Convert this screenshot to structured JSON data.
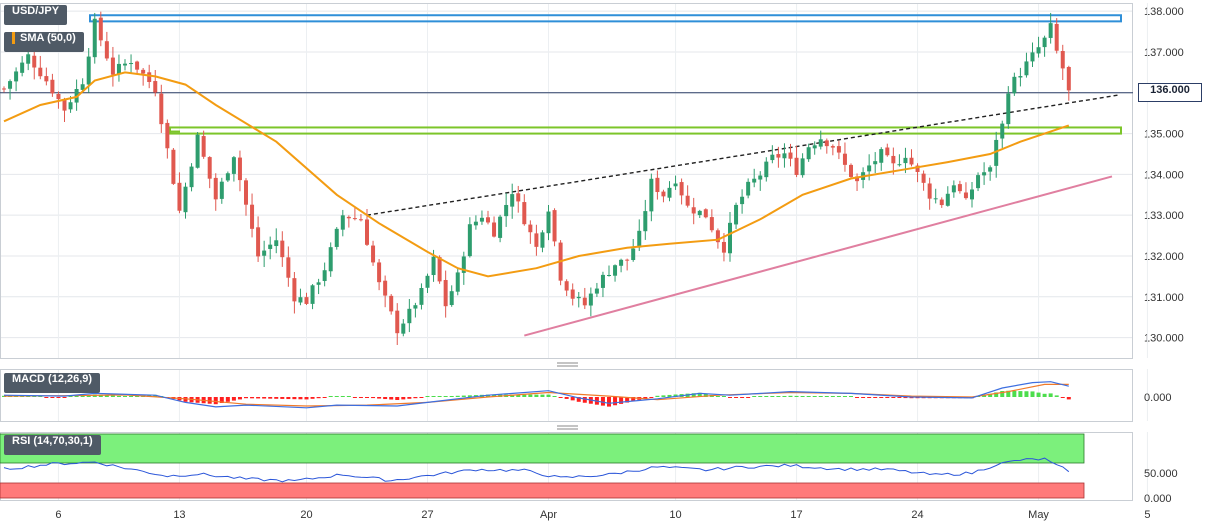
{
  "symbol": "USD/JPY",
  "sma_label": "SMA (50,0)",
  "macd_label": "MACD (12,26,9)",
  "rsi_label": "RSI (14,70,30,1)",
  "current_price": "136.000",
  "colors": {
    "bull": "#2e9d6e",
    "bear": "#e0584f",
    "sma": "#f39c12",
    "support": "#e07fa0",
    "resistance_box": "#2f8fd8",
    "green_box": "#7cc52a",
    "macd_line": "#3d6fe0",
    "signal_line": "#f07a2a",
    "rsi_line": "#2b56d9",
    "overbought": "#7cf07c",
    "oversold": "#ff7a7a"
  },
  "chart_data": {
    "type": "candlestick",
    "x_ticks": [
      "6",
      "13",
      "20",
      "27",
      "Apr",
      "10",
      "17",
      "24",
      "May",
      "5"
    ],
    "y_ticks": [
      "138.000",
      "137.000",
      "136.000",
      "135.000",
      "134.000",
      "133.000",
      "132.000",
      "131.000",
      "130.000"
    ],
    "ylim": [
      129.5,
      138.2
    ],
    "close_path": [
      [
        0,
        136.1
      ],
      [
        4,
        136.9
      ],
      [
        7,
        136.3
      ],
      [
        10,
        135.6
      ],
      [
        13,
        136.3
      ],
      [
        15,
        137.7
      ],
      [
        18,
        136.5
      ],
      [
        21,
        136.8
      ],
      [
        25,
        136.1
      ],
      [
        27,
        134.6
      ],
      [
        29,
        133.1
      ],
      [
        32,
        134.9
      ],
      [
        35,
        133.4
      ],
      [
        38,
        134.5
      ],
      [
        42,
        132.0
      ],
      [
        45,
        132.4
      ],
      [
        48,
        131.0
      ],
      [
        50,
        130.9
      ],
      [
        53,
        131.7
      ],
      [
        56,
        133.0
      ],
      [
        59,
        132.9
      ],
      [
        62,
        131.3
      ],
      [
        65,
        130.2
      ],
      [
        67,
        130.6
      ],
      [
        69,
        131.1
      ],
      [
        71,
        131.9
      ],
      [
        73,
        130.8
      ],
      [
        75,
        131.5
      ],
      [
        77,
        132.7
      ],
      [
        79,
        133.0
      ],
      [
        81,
        132.6
      ],
      [
        84,
        133.6
      ],
      [
        86,
        132.9
      ],
      [
        88,
        132.2
      ],
      [
        90,
        133.2
      ],
      [
        92,
        131.5
      ],
      [
        94,
        131.0
      ],
      [
        96,
        130.8
      ],
      [
        98,
        131.3
      ],
      [
        101,
        131.8
      ],
      [
        103,
        131.9
      ],
      [
        105,
        132.5
      ],
      [
        107,
        133.8
      ],
      [
        109,
        133.5
      ],
      [
        111,
        133.9
      ],
      [
        113,
        133.2
      ],
      [
        116,
        133.0
      ],
      [
        118,
        132.4
      ],
      [
        119,
        132.2
      ],
      [
        121,
        133.2
      ],
      [
        123,
        133.7
      ],
      [
        125,
        134.0
      ],
      [
        127,
        134.4
      ],
      [
        129,
        134.5
      ],
      [
        131,
        134.1
      ],
      [
        133,
        134.7
      ],
      [
        135,
        134.9
      ],
      [
        137,
        134.7
      ],
      [
        139,
        134.2
      ],
      [
        141,
        133.8
      ],
      [
        143,
        134.2
      ],
      [
        145,
        134.5
      ],
      [
        147,
        134.2
      ],
      [
        149,
        134.5
      ],
      [
        151,
        134.0
      ],
      [
        153,
        133.5
      ],
      [
        155,
        133.3
      ],
      [
        157,
        133.8
      ],
      [
        159,
        133.3
      ],
      [
        161,
        134.0
      ],
      [
        163,
        134.1
      ],
      [
        164,
        134.9
      ],
      [
        165,
        135.2
      ],
      [
        166,
        136.1
      ],
      [
        168,
        136.5
      ],
      [
        170,
        136.9
      ],
      [
        172,
        137.3
      ],
      [
        173,
        137.6
      ],
      [
        174,
        137.0
      ],
      [
        175,
        136.6
      ],
      [
        176,
        136.0
      ]
    ],
    "sma_path": [
      [
        0,
        135.3
      ],
      [
        6,
        135.7
      ],
      [
        12,
        135.9
      ],
      [
        15,
        136.3
      ],
      [
        20,
        136.5
      ],
      [
        25,
        136.4
      ],
      [
        30,
        136.2
      ],
      [
        35,
        135.7
      ],
      [
        45,
        134.8
      ],
      [
        55,
        133.5
      ],
      [
        62,
        132.8
      ],
      [
        70,
        132.1
      ],
      [
        75,
        131.7
      ],
      [
        80,
        131.5
      ],
      [
        88,
        131.7
      ],
      [
        95,
        132.0
      ],
      [
        103,
        132.2
      ],
      [
        110,
        132.3
      ],
      [
        118,
        132.4
      ],
      [
        125,
        132.9
      ],
      [
        132,
        133.5
      ],
      [
        140,
        133.9
      ],
      [
        148,
        134.1
      ],
      [
        156,
        134.3
      ],
      [
        163,
        134.5
      ],
      [
        168,
        134.8
      ],
      [
        172,
        135.0
      ],
      [
        176,
        135.2
      ]
    ],
    "macd_line_path": [
      [
        0,
        0.1
      ],
      [
        10,
        0.05
      ],
      [
        15,
        0.2
      ],
      [
        25,
        0.1
      ],
      [
        30,
        -0.3
      ],
      [
        35,
        -0.55
      ],
      [
        40,
        -0.45
      ],
      [
        50,
        -0.6
      ],
      [
        55,
        -0.45
      ],
      [
        65,
        -0.5
      ],
      [
        70,
        -0.3
      ],
      [
        80,
        0.1
      ],
      [
        90,
        0.35
      ],
      [
        95,
        -0.05
      ],
      [
        100,
        -0.35
      ],
      [
        108,
        -0.1
      ],
      [
        115,
        0.2
      ],
      [
        120,
        0.1
      ],
      [
        130,
        0.3
      ],
      [
        140,
        0.2
      ],
      [
        150,
        0.0
      ],
      [
        160,
        -0.05
      ],
      [
        165,
        0.5
      ],
      [
        170,
        0.8
      ],
      [
        173,
        0.85
      ],
      [
        176,
        0.6
      ]
    ],
    "signal_line_path": [
      [
        0,
        0.05
      ],
      [
        12,
        0.08
      ],
      [
        20,
        0.12
      ],
      [
        30,
        -0.1
      ],
      [
        40,
        -0.4
      ],
      [
        50,
        -0.5
      ],
      [
        60,
        -0.45
      ],
      [
        70,
        -0.3
      ],
      [
        80,
        0.0
      ],
      [
        90,
        0.25
      ],
      [
        100,
        0.05
      ],
      [
        108,
        -0.15
      ],
      [
        118,
        0.1
      ],
      [
        130,
        0.25
      ],
      [
        140,
        0.2
      ],
      [
        150,
        0.05
      ],
      [
        160,
        0.0
      ],
      [
        166,
        0.3
      ],
      [
        172,
        0.7
      ],
      [
        176,
        0.7
      ]
    ],
    "rsi_path": [
      [
        0,
        58
      ],
      [
        8,
        68
      ],
      [
        15,
        72
      ],
      [
        20,
        60
      ],
      [
        27,
        44
      ],
      [
        32,
        48
      ],
      [
        40,
        38
      ],
      [
        48,
        34
      ],
      [
        56,
        47
      ],
      [
        64,
        35
      ],
      [
        70,
        45
      ],
      [
        78,
        57
      ],
      [
        86,
        55
      ],
      [
        92,
        40
      ],
      [
        100,
        47
      ],
      [
        108,
        62
      ],
      [
        116,
        56
      ],
      [
        122,
        62
      ],
      [
        130,
        65
      ],
      [
        138,
        58
      ],
      [
        146,
        57
      ],
      [
        154,
        46
      ],
      [
        160,
        50
      ],
      [
        164,
        67
      ],
      [
        168,
        76
      ],
      [
        172,
        78
      ],
      [
        174,
        64
      ],
      [
        176,
        55
      ]
    ],
    "macd_ticks": [
      "0.000"
    ],
    "rsi_ticks": [
      "50.000",
      "0.000"
    ]
  }
}
